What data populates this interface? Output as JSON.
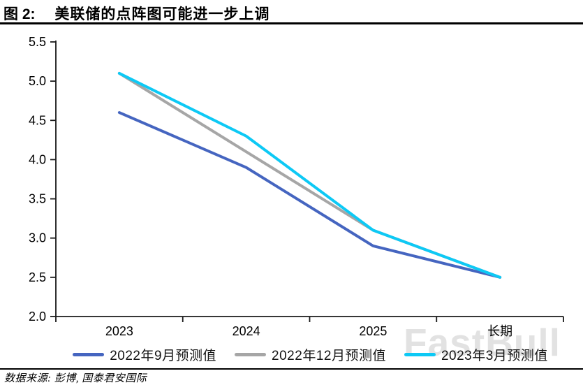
{
  "title": {
    "prefix": "图 2:",
    "text": "美联储的点阵图可能进一步上调"
  },
  "source": {
    "label": "数据来源: 彭博, 国泰君安国际"
  },
  "watermark": "FastBull",
  "colors": {
    "axis": "#1a1a1a",
    "text": "#141414",
    "series_sep2022": "#4565c0",
    "series_dec2022": "#a6a6a6",
    "series_mar2023": "#0dc9f5",
    "watermark": "#e2e2e2"
  },
  "chart_data": {
    "type": "line",
    "title": "美联储的点阵图可能进一步上调",
    "categories": [
      "2023",
      "2024",
      "2025",
      "长期"
    ],
    "series": [
      {
        "name": "2022年9月预测值",
        "color": "#4565c0",
        "values": [
          4.6,
          3.9,
          2.9,
          2.5
        ]
      },
      {
        "name": "2022年12月预测值",
        "color": "#a6a6a6",
        "values": [
          5.1,
          4.1,
          3.1,
          2.5
        ]
      },
      {
        "name": "2023年3月预测值",
        "color": "#0dc9f5",
        "values": [
          5.1,
          4.3,
          3.1,
          2.5
        ]
      }
    ],
    "xlabel": "",
    "ylabel": "",
    "ylim": [
      2.0,
      5.5
    ],
    "ytick_step": 0.5,
    "ytick_labels": [
      "2.0",
      "2.5",
      "3.0",
      "3.5",
      "4.0",
      "4.5",
      "5.0",
      "5.5"
    ],
    "grid": false,
    "legend_position": "bottom"
  }
}
